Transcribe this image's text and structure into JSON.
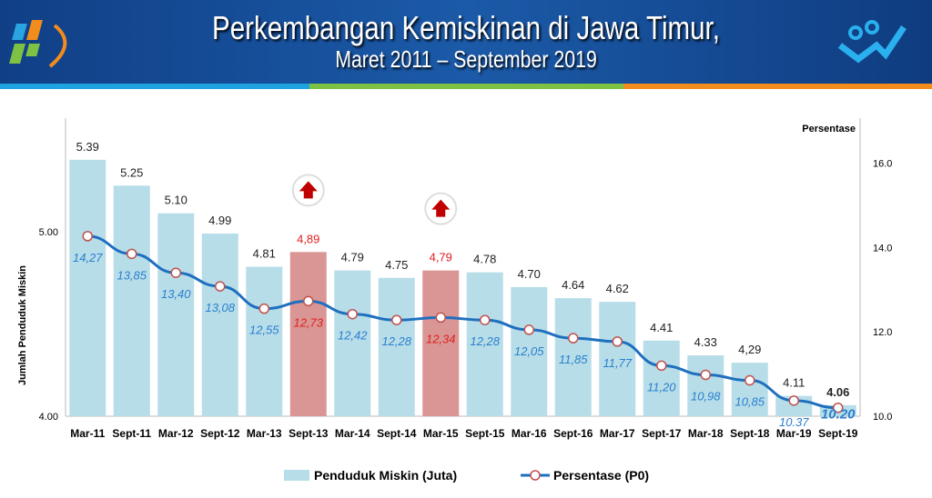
{
  "header": {
    "title": "Perkembangan Kemiskinan di Jawa Timur,",
    "subtitle": "Maret 2011  –  September 2019"
  },
  "colors": {
    "bar": "#b7dde8",
    "bar_highlight": "#d99694",
    "line": "#1f6fbf",
    "label_blue": "#2a7fd0",
    "label_red": "#e02020",
    "arrow": "#c00000"
  },
  "chart_data": {
    "type": "bar+line",
    "categories": [
      "Mar-11",
      "Sept-11",
      "Mar-12",
      "Sept-12",
      "Mar-13",
      "Sept-13",
      "Mar-14",
      "Sept-14",
      "Mar-15",
      "Sept-15",
      "Mar-16",
      "Sept-16",
      "Mar-17",
      "Sept-17",
      "Mar-18",
      "Sept-18",
      "Mar-19",
      "Sept-19"
    ],
    "series": [
      {
        "name": "Penduduk Miskin (Juta)",
        "type": "bar",
        "axis": "left",
        "values": [
          5.39,
          5.25,
          5.1,
          4.99,
          4.81,
          4.89,
          4.79,
          4.75,
          4.79,
          4.78,
          4.7,
          4.64,
          4.62,
          4.41,
          4.33,
          4.29,
          4.11,
          4.06
        ],
        "labels": [
          "5.39",
          "5.25",
          "5.10",
          "4.99",
          "4.81",
          "4,89",
          "4.79",
          "4.75",
          "4,79",
          "4.78",
          "4.70",
          "4.64",
          "4.62",
          "4.41",
          "4.33",
          "4,29",
          "4.11",
          "4.06"
        ]
      },
      {
        "name": "Persentase (P0)",
        "type": "line",
        "axis": "right",
        "values": [
          14.27,
          13.85,
          13.4,
          13.08,
          12.55,
          12.73,
          12.42,
          12.28,
          12.34,
          12.28,
          12.05,
          11.85,
          11.77,
          11.2,
          10.98,
          10.85,
          10.37,
          10.2
        ],
        "labels": [
          "14,27",
          "13,85",
          "13,40",
          "13,08",
          "12,55",
          "12,73",
          "12,42",
          "12,28",
          "12,34",
          "12,28",
          "12,05",
          "11,85",
          "11,77",
          "11,20",
          "10,98",
          "10,85",
          "10.37",
          "10.20"
        ]
      }
    ],
    "highlighted": [
      "Sept-13",
      "Mar-15"
    ],
    "ylabel": "Jumlah Penduduk Miskin",
    "y2label": "Persentase",
    "ylim": [
      4.0,
      5.45
    ],
    "y_ticks": [
      "4.00",
      "5.00"
    ],
    "y2lim": [
      10.0,
      16.3
    ],
    "y2_ticks": [
      "10.0",
      "12.0",
      "14.0",
      "16.0"
    ],
    "legend_position": "bottom"
  }
}
